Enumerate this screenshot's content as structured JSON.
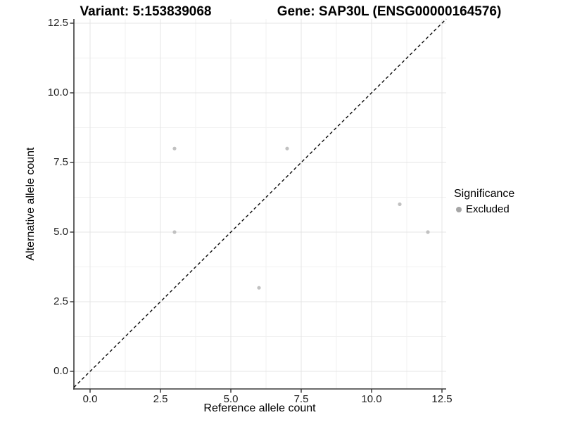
{
  "titles": {
    "variant": "Variant: 5:153839068",
    "gene": "Gene: SAP30L (ENSG00000164576)"
  },
  "axes": {
    "x": {
      "label": "Reference allele count",
      "tick_values": [
        0,
        2.5,
        5,
        7.5,
        10,
        12.5
      ],
      "tick_labels": [
        "0.0",
        "2.5",
        "5.0",
        "7.5",
        "10.0",
        "12.5"
      ]
    },
    "y": {
      "label": "Alternative allele count",
      "tick_values": [
        0,
        2.5,
        5,
        7.5,
        10,
        12.5
      ],
      "tick_labels": [
        "0.0",
        "2.5",
        "5.0",
        "7.5",
        "10.0",
        "12.5"
      ]
    }
  },
  "legend": {
    "title": "Significance",
    "position": "right",
    "items": [
      {
        "label": "Excluded",
        "key_color": "#a6a6a6"
      }
    ]
  },
  "chart_data": {
    "type": "scatter",
    "title": "Variant: 5:153839068   Gene: SAP30L (ENSG00000164576)",
    "xlabel": "Reference allele count",
    "ylabel": "Alternative allele count",
    "xlim": [
      -0.575,
      12.65
    ],
    "ylim": [
      -0.63,
      12.65
    ],
    "grid": "major+minor",
    "series": [
      {
        "name": "Excluded",
        "color": "#c1c1c1",
        "points": [
          [
            3,
            8
          ],
          [
            7,
            8
          ],
          [
            3,
            5
          ],
          [
            6,
            3
          ],
          [
            11,
            6
          ],
          [
            12,
            5
          ]
        ]
      }
    ],
    "reference_line": {
      "type": "identity y=x",
      "style": "dashed",
      "color": "#000000"
    }
  },
  "colors": {
    "point": "#c1c1c1",
    "grid_major": "#e4e4e4",
    "grid_minor": "#f1f1f1",
    "axis_line": "#3a3a3a",
    "tick_mark": "#333333",
    "dashed_line": "#0a0a0a"
  }
}
